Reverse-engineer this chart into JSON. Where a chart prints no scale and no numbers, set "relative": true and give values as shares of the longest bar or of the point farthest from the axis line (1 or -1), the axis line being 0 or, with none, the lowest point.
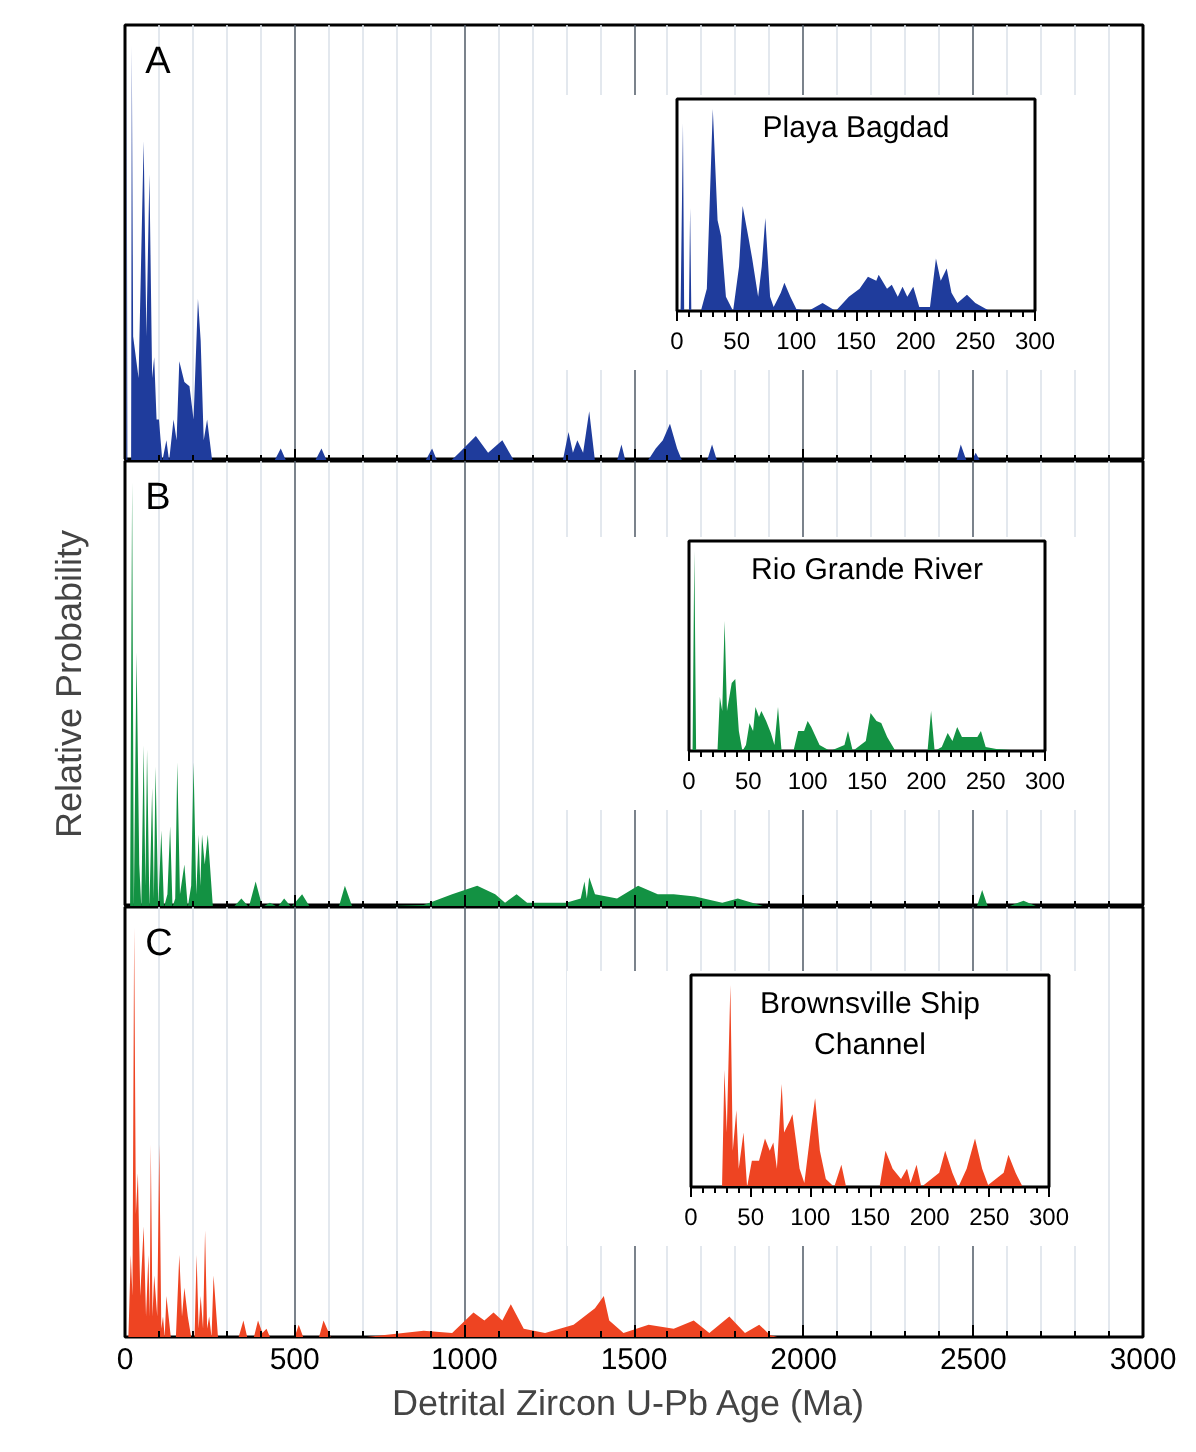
{
  "chart_data": [
    {
      "type": "area",
      "relative": true,
      "annotations": [
        "A"
      ],
      "xlim": [
        0,
        3000
      ],
      "grid": "x",
      "tick_labels": false,
      "xticks": [
        0,
        {
          "value": 100,
          "label": null
        },
        {
          "value": 200,
          "label": null
        },
        {
          "value": 300,
          "label": null
        },
        {
          "value": 400,
          "label": null
        },
        500,
        {
          "value": 600,
          "label": null
        },
        {
          "value": 700,
          "label": null
        },
        {
          "value": 800,
          "label": null
        },
        {
          "value": 900,
          "label": null
        },
        1000,
        {
          "value": 1100,
          "label": null
        },
        {
          "value": 1200,
          "label": null
        },
        {
          "value": 1300,
          "label": null
        },
        {
          "value": 1400,
          "label": null
        },
        1500,
        {
          "value": 1600,
          "label": null
        },
        {
          "value": 1700,
          "label": null
        },
        {
          "value": 1800,
          "label": null
        },
        {
          "value": 1900,
          "label": null
        },
        2000,
        {
          "value": 2100,
          "label": null
        },
        {
          "value": 2200,
          "label": null
        },
        {
          "value": 2300,
          "label": null
        },
        {
          "value": 2400,
          "label": null
        },
        2500,
        {
          "value": 2600,
          "label": null
        },
        {
          "value": 2700,
          "label": null
        },
        {
          "value": 2800,
          "label": null
        },
        {
          "value": 2900,
          "label": null
        },
        3000
      ],
      "series": [
        {
          "color": "#1f3c9c",
          "x": [
            0,
            4,
            5,
            7,
            18,
            20,
            24,
            40,
            55,
            63,
            72,
            80,
            86,
            93,
            100,
            110,
            122,
            130,
            143,
            152,
            160,
            175,
            190,
            202,
            215,
            223,
            232,
            242,
            257,
            440,
            459,
            475,
            560,
            579,
            595,
            885,
            905,
            920,
            960,
            985,
            1034,
            1070,
            1112,
            1147,
            1290,
            1307,
            1320,
            1333,
            1350,
            1368,
            1385,
            1450,
            1463,
            1475,
            1540,
            1564,
            1585,
            1606,
            1627,
            1642,
            1715,
            1730,
            1745,
            2450,
            2463,
            2480,
            2495,
            2507,
            2520,
            3000
          ],
          "values": [
            0,
            0,
            1,
            0,
            0,
            1,
            0.3,
            0.2,
            0.77,
            0.3,
            0.69,
            0.2,
            0.25,
            0.1,
            0.1,
            0,
            0.05,
            0,
            0.1,
            0.05,
            0.24,
            0.19,
            0.18,
            0.1,
            0.39,
            0.29,
            0.05,
            0.1,
            0,
            0,
            0.03,
            0,
            0,
            0.03,
            0,
            0,
            0.03,
            0,
            0,
            0.02,
            0.06,
            0.02,
            0.05,
            0,
            0,
            0.07,
            0.02,
            0.05,
            0.02,
            0.12,
            0,
            0,
            0.04,
            0,
            0,
            0.03,
            0.05,
            0.09,
            0.03,
            0,
            0,
            0.04,
            0,
            0,
            0.04,
            0,
            0,
            0.02,
            0,
            0
          ]
        }
      ]
    },
    {
      "type": "area",
      "relative": true,
      "title": "Playa Bagdad",
      "xlim": [
        0,
        300
      ],
      "xticks": [
        0,
        {
          "value": 10,
          "label": null
        },
        {
          "value": 20,
          "label": null
        },
        {
          "value": 30,
          "label": null
        },
        {
          "value": 40,
          "label": null
        },
        50,
        {
          "value": 60,
          "label": null
        },
        {
          "value": 70,
          "label": null
        },
        {
          "value": 80,
          "label": null
        },
        {
          "value": 90,
          "label": null
        },
        100,
        {
          "value": 110,
          "label": null
        },
        {
          "value": 120,
          "label": null
        },
        {
          "value": 130,
          "label": null
        },
        {
          "value": 140,
          "label": null
        },
        150,
        {
          "value": 160,
          "label": null
        },
        {
          "value": 170,
          "label": null
        },
        {
          "value": 180,
          "label": null
        },
        {
          "value": 190,
          "label": null
        },
        200,
        {
          "value": 210,
          "label": null
        },
        {
          "value": 220,
          "label": null
        },
        {
          "value": 230,
          "label": null
        },
        {
          "value": 240,
          "label": null
        },
        250,
        {
          "value": 260,
          "label": null
        },
        {
          "value": 270,
          "label": null
        },
        {
          "value": 280,
          "label": null
        },
        {
          "value": 290,
          "label": null
        },
        300
      ],
      "series": [
        {
          "color": "#1f3c9c",
          "x": [
            0,
            3,
            5,
            6,
            10,
            11,
            12,
            20,
            25,
            30,
            34,
            37,
            41,
            47,
            52,
            55,
            60,
            63,
            68,
            71,
            74,
            78,
            81,
            87,
            90,
            95,
            100,
            110,
            122,
            133,
            144,
            153,
            160,
            167,
            169,
            176,
            180,
            185,
            189,
            193,
            198,
            203,
            212,
            217,
            221,
            226,
            230,
            235,
            243,
            250,
            262,
            300
          ],
          "values": [
            0,
            0,
            0.93,
            0,
            0,
            0.51,
            0,
            0,
            0.11,
            1,
            0.45,
            0.37,
            0.07,
            0,
            0.22,
            0.52,
            0.36,
            0.26,
            0.07,
            0.22,
            0.46,
            0.07,
            0.02,
            0.09,
            0.14,
            0.07,
            0.01,
            0,
            0.04,
            0,
            0.07,
            0.11,
            0.17,
            0.15,
            0.18,
            0.11,
            0.13,
            0.07,
            0.12,
            0.07,
            0.12,
            0.02,
            0.02,
            0.26,
            0.15,
            0.21,
            0.09,
            0.04,
            0.08,
            0.04,
            0,
            0
          ]
        }
      ]
    },
    {
      "type": "area",
      "relative": true,
      "annotations": [
        "B"
      ],
      "ylabel": "Relative Probability",
      "xlim": [
        0,
        3000
      ],
      "grid": "x",
      "tick_labels": false,
      "xticks": [
        0,
        {
          "value": 100,
          "label": null
        },
        {
          "value": 200,
          "label": null
        },
        {
          "value": 300,
          "label": null
        },
        {
          "value": 400,
          "label": null
        },
        500,
        {
          "value": 600,
          "label": null
        },
        {
          "value": 700,
          "label": null
        },
        {
          "value": 800,
          "label": null
        },
        {
          "value": 900,
          "label": null
        },
        1000,
        {
          "value": 1100,
          "label": null
        },
        {
          "value": 1200,
          "label": null
        },
        {
          "value": 1300,
          "label": null
        },
        {
          "value": 1400,
          "label": null
        },
        1500,
        {
          "value": 1600,
          "label": null
        },
        {
          "value": 1700,
          "label": null
        },
        {
          "value": 1800,
          "label": null
        },
        {
          "value": 1900,
          "label": null
        },
        2000,
        {
          "value": 2100,
          "label": null
        },
        {
          "value": 2200,
          "label": null
        },
        {
          "value": 2300,
          "label": null
        },
        {
          "value": 2400,
          "label": null
        },
        2500,
        {
          "value": 2600,
          "label": null
        },
        {
          "value": 2700,
          "label": null
        },
        {
          "value": 2800,
          "label": null
        },
        {
          "value": 2900,
          "label": null
        },
        3000
      ],
      "series": [
        {
          "color": "#139243",
          "x": [
            0,
            15,
            21,
            26,
            34,
            42,
            48,
            55,
            60,
            65,
            72,
            80,
            85,
            90,
            98,
            107,
            115,
            125,
            133,
            140,
            148,
            154,
            162,
            175,
            185,
            195,
            202,
            210,
            217,
            222,
            227,
            235,
            244,
            259,
            320,
            343,
            365,
            385,
            405,
            427,
            450,
            469,
            490,
            522,
            545,
            630,
            648,
            670,
            690,
            880,
            964,
            1038,
            1091,
            1120,
            1154,
            1185,
            1300,
            1343,
            1354,
            1361,
            1368,
            1385,
            1450,
            1512,
            1570,
            1617,
            1680,
            1760,
            1806,
            1890,
            2510,
            2526,
            2543,
            2600,
            2648,
            2691,
            3000
          ],
          "values": [
            0,
            0,
            1,
            0,
            0.6,
            0.1,
            0,
            0.38,
            0.05,
            0.37,
            0,
            0.28,
            0.02,
            0.33,
            0,
            0.18,
            0,
            0.03,
            0.19,
            0,
            0.02,
            0.34,
            0.03,
            0.1,
            0,
            0.05,
            0.34,
            0.03,
            0.17,
            0.05,
            0.17,
            0.1,
            0.17,
            0,
            0,
            0.02,
            0,
            0.06,
            0,
            0.01,
            0,
            0.02,
            0,
            0.03,
            0,
            0,
            0.05,
            0,
            0,
            0.005,
            0.03,
            0.05,
            0.03,
            0.01,
            0.03,
            0.01,
            0.01,
            0.02,
            0.06,
            0.02,
            0.07,
            0.03,
            0.02,
            0.05,
            0.03,
            0.03,
            0.025,
            0.01,
            0.02,
            0,
            0,
            0.04,
            0,
            0,
            0.015,
            0,
            0
          ]
        }
      ]
    },
    {
      "type": "area",
      "relative": true,
      "title": "Rio Grande River",
      "xlim": [
        0,
        300
      ],
      "xticks": [
        0,
        {
          "value": 10,
          "label": null
        },
        {
          "value": 20,
          "label": null
        },
        {
          "value": 30,
          "label": null
        },
        {
          "value": 40,
          "label": null
        },
        50,
        {
          "value": 60,
          "label": null
        },
        {
          "value": 70,
          "label": null
        },
        {
          "value": 80,
          "label": null
        },
        {
          "value": 90,
          "label": null
        },
        100,
        {
          "value": 110,
          "label": null
        },
        {
          "value": 120,
          "label": null
        },
        {
          "value": 130,
          "label": null
        },
        {
          "value": 140,
          "label": null
        },
        150,
        {
          "value": 160,
          "label": null
        },
        {
          "value": 170,
          "label": null
        },
        {
          "value": 180,
          "label": null
        },
        {
          "value": 190,
          "label": null
        },
        200,
        {
          "value": 210,
          "label": null
        },
        {
          "value": 220,
          "label": null
        },
        {
          "value": 230,
          "label": null
        },
        {
          "value": 240,
          "label": null
        },
        250,
        {
          "value": 260,
          "label": null
        },
        {
          "value": 270,
          "label": null
        },
        {
          "value": 280,
          "label": null
        },
        {
          "value": 290,
          "label": null
        },
        300
      ],
      "series": [
        {
          "color": "#139243",
          "x": [
            0,
            3,
            4.5,
            6,
            24,
            26,
            28,
            30,
            32,
            36,
            39,
            42,
            45,
            48,
            51,
            54,
            56,
            59,
            61,
            65,
            69,
            72,
            75,
            78,
            88,
            92,
            97,
            100,
            103,
            110,
            119,
            131,
            134,
            138,
            149,
            153,
            158,
            162,
            167,
            174,
            201,
            204,
            207,
            213,
            218,
            222,
            226,
            230,
            237,
            243,
            246,
            250,
            259,
            282,
            300
          ],
          "values": [
            0,
            0,
            1,
            0,
            0,
            0.27,
            0.2,
            0.65,
            0.2,
            0.34,
            0.36,
            0.1,
            0,
            0.03,
            0.14,
            0.1,
            0.22,
            0.17,
            0.2,
            0.15,
            0.09,
            0.03,
            0.22,
            0,
            0,
            0.1,
            0.1,
            0.15,
            0.12,
            0.03,
            0,
            0.03,
            0.1,
            0,
            0.05,
            0.19,
            0.15,
            0.14,
            0.07,
            0,
            0,
            0.2,
            0,
            0.02,
            0.09,
            0.05,
            0.12,
            0.07,
            0.07,
            0.07,
            0.1,
            0.02,
            0.01,
            0,
            0
          ]
        }
      ]
    },
    {
      "type": "area",
      "relative": true,
      "annotations": [
        "C"
      ],
      "xlabel": "Detrital Zircon U-Pb Age  (Ma)",
      "xlim": [
        0,
        3000
      ],
      "grid": "x",
      "tick_labels": "x",
      "xticks": [
        0,
        {
          "value": 100,
          "label": null
        },
        {
          "value": 200,
          "label": null
        },
        {
          "value": 300,
          "label": null
        },
        {
          "value": 400,
          "label": null
        },
        500,
        {
          "value": 600,
          "label": null
        },
        {
          "value": 700,
          "label": null
        },
        {
          "value": 800,
          "label": null
        },
        {
          "value": 900,
          "label": null
        },
        1000,
        {
          "value": 1100,
          "label": null
        },
        {
          "value": 1200,
          "label": null
        },
        {
          "value": 1300,
          "label": null
        },
        {
          "value": 1400,
          "label": null
        },
        1500,
        {
          "value": 1600,
          "label": null
        },
        {
          "value": 1700,
          "label": null
        },
        {
          "value": 1800,
          "label": null
        },
        {
          "value": 1900,
          "label": null
        },
        2000,
        {
          "value": 2100,
          "label": null
        },
        {
          "value": 2200,
          "label": null
        },
        {
          "value": 2300,
          "label": null
        },
        {
          "value": 2400,
          "label": null
        },
        2500,
        {
          "value": 2600,
          "label": null
        },
        {
          "value": 2700,
          "label": null
        },
        {
          "value": 2800,
          "label": null
        },
        {
          "value": 2900,
          "label": null
        },
        3000
      ],
      "series": [
        {
          "color": "#ee4422",
          "x": [
            0,
            10,
            17,
            22,
            27,
            32,
            38,
            45,
            55,
            62,
            69,
            73,
            76,
            81,
            86,
            95,
            101,
            107,
            112,
            117,
            122,
            135,
            150,
            160,
            168,
            175,
            185,
            195,
            205,
            211,
            217,
            223,
            230,
            236,
            242,
            248,
            255,
            261,
            274,
            335,
            349,
            360,
            380,
            392,
            405,
            417,
            427,
            500,
            512,
            525,
            572,
            585,
            606,
            712,
            880,
            964,
            1027,
            1059,
            1086,
            1112,
            1137,
            1175,
            1238,
            1322,
            1385,
            1411,
            1427,
            1469,
            1543,
            1617,
            1676,
            1722,
            1781,
            1827,
            1869,
            1901,
            1922,
            3000
          ],
          "values": [
            0,
            0,
            0.2,
            0.1,
            1,
            0.3,
            0.4,
            0.1,
            0.27,
            0.05,
            0.2,
            0.05,
            0.47,
            0.05,
            0.15,
            0.05,
            0.47,
            0.02,
            0.05,
            0,
            0.1,
            0,
            0,
            0.2,
            0.05,
            0.12,
            0.05,
            0,
            0,
            0.2,
            0.02,
            0.1,
            0.02,
            0.26,
            0.02,
            0.05,
            0,
            0.15,
            0,
            0,
            0.04,
            0,
            0,
            0.04,
            0.01,
            0.02,
            0,
            0,
            0.03,
            0,
            0,
            0.04,
            0,
            0,
            0.015,
            0.01,
            0.06,
            0.04,
            0.06,
            0.04,
            0.08,
            0.02,
            0.01,
            0.03,
            0.07,
            0.1,
            0.04,
            0.01,
            0.03,
            0.02,
            0.04,
            0.01,
            0.05,
            0.01,
            0.03,
            0.005,
            0,
            0
          ]
        }
      ]
    },
    {
      "type": "area",
      "relative": true,
      "title": "Brownsville Ship\nChannel",
      "xlim": [
        0,
        300
      ],
      "xticks": [
        0,
        {
          "value": 10,
          "label": null
        },
        {
          "value": 20,
          "label": null
        },
        {
          "value": 30,
          "label": null
        },
        {
          "value": 40,
          "label": null
        },
        50,
        {
          "value": 60,
          "label": null
        },
        {
          "value": 70,
          "label": null
        },
        {
          "value": 80,
          "label": null
        },
        {
          "value": 90,
          "label": null
        },
        100,
        {
          "value": 110,
          "label": null
        },
        {
          "value": 120,
          "label": null
        },
        {
          "value": 130,
          "label": null
        },
        {
          "value": 140,
          "label": null
        },
        150,
        {
          "value": 160,
          "label": null
        },
        {
          "value": 170,
          "label": null
        },
        {
          "value": 180,
          "label": null
        },
        {
          "value": 190,
          "label": null
        },
        200,
        {
          "value": 210,
          "label": null
        },
        {
          "value": 220,
          "label": null
        },
        {
          "value": 230,
          "label": null
        },
        {
          "value": 240,
          "label": null
        },
        250,
        {
          "value": 260,
          "label": null
        },
        {
          "value": 270,
          "label": null
        },
        {
          "value": 280,
          "label": null
        },
        {
          "value": 290,
          "label": null
        },
        300
      ],
      "series": [
        {
          "color": "#ee4422",
          "x": [
            0,
            26,
            28,
            30,
            33,
            35,
            38,
            40,
            44,
            47,
            51,
            57,
            62,
            66,
            69,
            72,
            76,
            78,
            83,
            85,
            91,
            95,
            101,
            104,
            108,
            113,
            120,
            126,
            130,
            158,
            163,
            169,
            176,
            181,
            184,
            189,
            193,
            208,
            213,
            219,
            224,
            231,
            238,
            244,
            249,
            262,
            266,
            272,
            278,
            300
          ],
          "values": [
            0,
            0,
            0.58,
            0.27,
            1,
            0.18,
            0.38,
            0.09,
            0.27,
            0,
            0.13,
            0.13,
            0.24,
            0.18,
            0.22,
            0.09,
            0.51,
            0.27,
            0.33,
            0.36,
            0.09,
            0.02,
            0.31,
            0.44,
            0.18,
            0.04,
            0,
            0.11,
            0,
            0,
            0.18,
            0.09,
            0.04,
            0.09,
            0.02,
            0.11,
            0,
            0.07,
            0.18,
            0.07,
            0,
            0.09,
            0.24,
            0.09,
            0.01,
            0.07,
            0.16,
            0.07,
            0,
            0
          ]
        }
      ]
    }
  ]
}
